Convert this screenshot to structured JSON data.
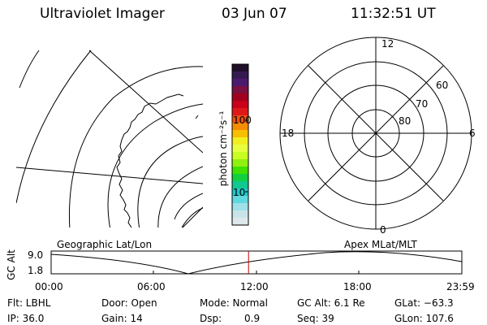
{
  "header": {
    "instrument": "Ultraviolet Imager",
    "date": "03 Jun 07",
    "time": "11:32:51 UT"
  },
  "colorbar": {
    "unit_label": "photon cm⁻²s⁻¹",
    "ticks": [
      "100",
      "10"
    ],
    "colors_top_to_bottom": [
      "#20102a",
      "#351a52",
      "#4a1a6e",
      "#7a1040",
      "#a0001e",
      "#c8001a",
      "#e01818",
      "#f05010",
      "#f48c00",
      "#f6c000",
      "#f2ef20",
      "#e8ff40",
      "#c8ff20",
      "#90f010",
      "#40e000",
      "#10d040",
      "#10c890",
      "#20c8c8",
      "#60d8e0",
      "#a0e0e8",
      "#c8e4e8",
      "#dde8ea"
    ]
  },
  "geo_map": {
    "label": "Geographic Lat/Lon"
  },
  "polar_plot": {
    "label": "Apex MLat/MLT",
    "mlt_labels": {
      "top": "12",
      "right": "6",
      "bottom": "0",
      "left": "18"
    },
    "lat_labels": [
      "60",
      "70",
      "80"
    ]
  },
  "altitude_plot": {
    "ylabel": "GC Alt",
    "yticks": [
      "9.0",
      "1.8"
    ],
    "xticks": [
      "00:00",
      "06:00",
      "12:00",
      "18:00",
      "23:59"
    ],
    "current_time_marker": "11:32",
    "marker_color": "#c00000"
  },
  "status": {
    "flt": "Flt: LBHL",
    "door": "Door: Open",
    "mode": "Mode: Normal",
    "gc_alt": "GC Alt: 6.1 Re",
    "glat": "GLat: −63.3",
    "ip": "IP: 36.0",
    "gain": "Gain: 14",
    "dsp_label": "Dsp:",
    "dsp_value": "0.9",
    "seq": "Seq: 39",
    "glon": "GLon: 107.6"
  }
}
